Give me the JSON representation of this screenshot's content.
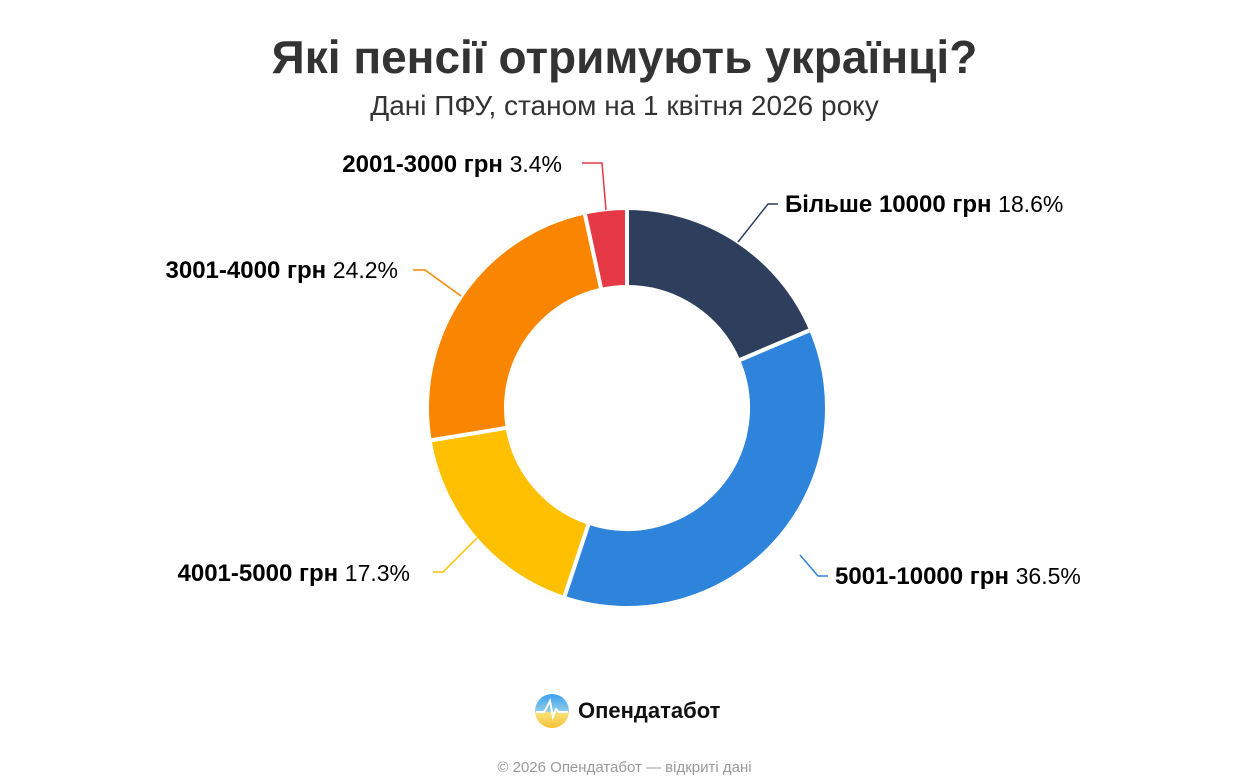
{
  "chart_data": {
    "type": "pie",
    "variant": "donut",
    "title": "Які пенсії отримують українці?",
    "subtitle": "Дані ПФУ, станом на 1 квітня 2026 року",
    "unit": "%",
    "slices": [
      {
        "label": "Більше 10000 грн",
        "value": 18.6,
        "display": "18.6%",
        "color": "#2e3f5e"
      },
      {
        "label": "5001-10000 грн",
        "value": 36.5,
        "display": "36.5%",
        "color": "#2e83db"
      },
      {
        "label": "4001-5000 грн",
        "value": 17.3,
        "display": "17.3%",
        "color": "#fec000"
      },
      {
        "label": "3001-4000 грн",
        "value": 24.2,
        "display": "24.2%",
        "color": "#fa8500"
      },
      {
        "label": "2001-3000 грн",
        "value": 3.4,
        "display": "3.4%",
        "color": "#e63946"
      }
    ],
    "start": "top",
    "direction": "clockwise"
  },
  "brand": {
    "name": "Опендатабот",
    "icon": "opendatabot-logo-icon"
  },
  "footer": "© 2026 Опендатабот — відкриті дані"
}
